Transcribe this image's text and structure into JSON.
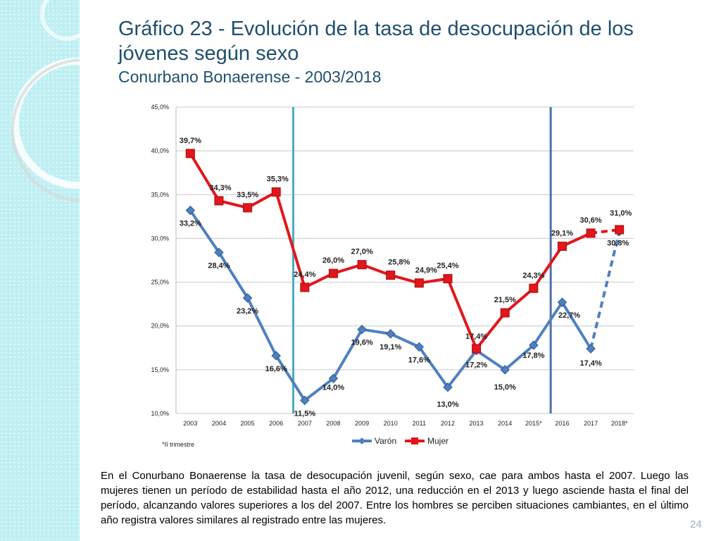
{
  "title": {
    "line1": "Gráfico 23 - Evolución de la tasa de desocupación de los",
    "line2": "jóvenes según sexo",
    "subtitle": "Conurbano Bonaerense - 2003/2018"
  },
  "chart_data": {
    "type": "line",
    "title": "",
    "xlabel": "",
    "ylabel": "",
    "categories": [
      "2003",
      "2004",
      "2005",
      "2006",
      "2007",
      "2008",
      "2009",
      "2010",
      "2011",
      "2012",
      "2013",
      "2014",
      "2015*",
      "2016",
      "2017",
      "2018*"
    ],
    "ylim": [
      10,
      45
    ],
    "y_ticks": [
      "10,0%",
      "15,0%",
      "20,0%",
      "25,0%",
      "30,0%",
      "35,0%",
      "40,0%",
      "45,0%"
    ],
    "y_tick_values": [
      10,
      15,
      20,
      25,
      30,
      35,
      40,
      45
    ],
    "series": [
      {
        "name": "Varón",
        "color": "#4f81bd",
        "values": [
          33.2,
          28.4,
          23.2,
          16.6,
          11.5,
          14.0,
          19.6,
          19.1,
          17.6,
          13.0,
          17.2,
          15.0,
          17.8,
          22.7,
          17.4,
          30.8
        ],
        "labels": [
          "33,2%",
          "28,4%",
          "23,2%",
          "16,6%",
          "11,5%",
          "14,0%",
          "19,6%",
          "19,1%",
          "17,6%",
          "13,0%",
          "17,2%",
          "15,0%",
          "17,8%",
          "22,7%",
          "17,4%",
          "30,8%"
        ],
        "dashed_last_segment": true
      },
      {
        "name": "Mujer",
        "color": "#e3161b",
        "values": [
          39.7,
          34.3,
          33.5,
          35.3,
          24.4,
          26.0,
          27.0,
          25.8,
          24.9,
          25.4,
          17.4,
          21.5,
          24.3,
          29.1,
          30.6,
          31.0
        ],
        "labels": [
          "39,7%",
          "34,3%",
          "33,5%",
          "35,3%",
          "24,4%",
          "26,0%",
          "27,0%",
          "25,8%",
          "24,9%",
          "25,4%",
          "17,4%",
          "21,5%",
          "24,3%",
          "29,1%",
          "30,6%",
          "31,0%"
        ],
        "dashed_last_segment": true
      }
    ],
    "vertical_markers": [
      {
        "after_category": "2006",
        "color": "#4bacc6"
      },
      {
        "after_category": "2015*",
        "color": "#4f6fa8"
      }
    ],
    "grid": true,
    "legend": "bottom-center",
    "footnote": "*II trimestre"
  },
  "caption": "En el Conurbano Bonaerense la tasa de desocupación juvenil, según sexo, cae para ambos hasta el 2007. Luego las mujeres tienen un período de estabilidad hasta el año 2012, una reducción en el 2013 y luego asciende hasta el final del período, alcanzando valores superiores a los del 2007. Entre los hombres se perciben situaciones cambiantes, en el último año registra valores similares al registrado entre las mujeres.",
  "page_number": "24"
}
